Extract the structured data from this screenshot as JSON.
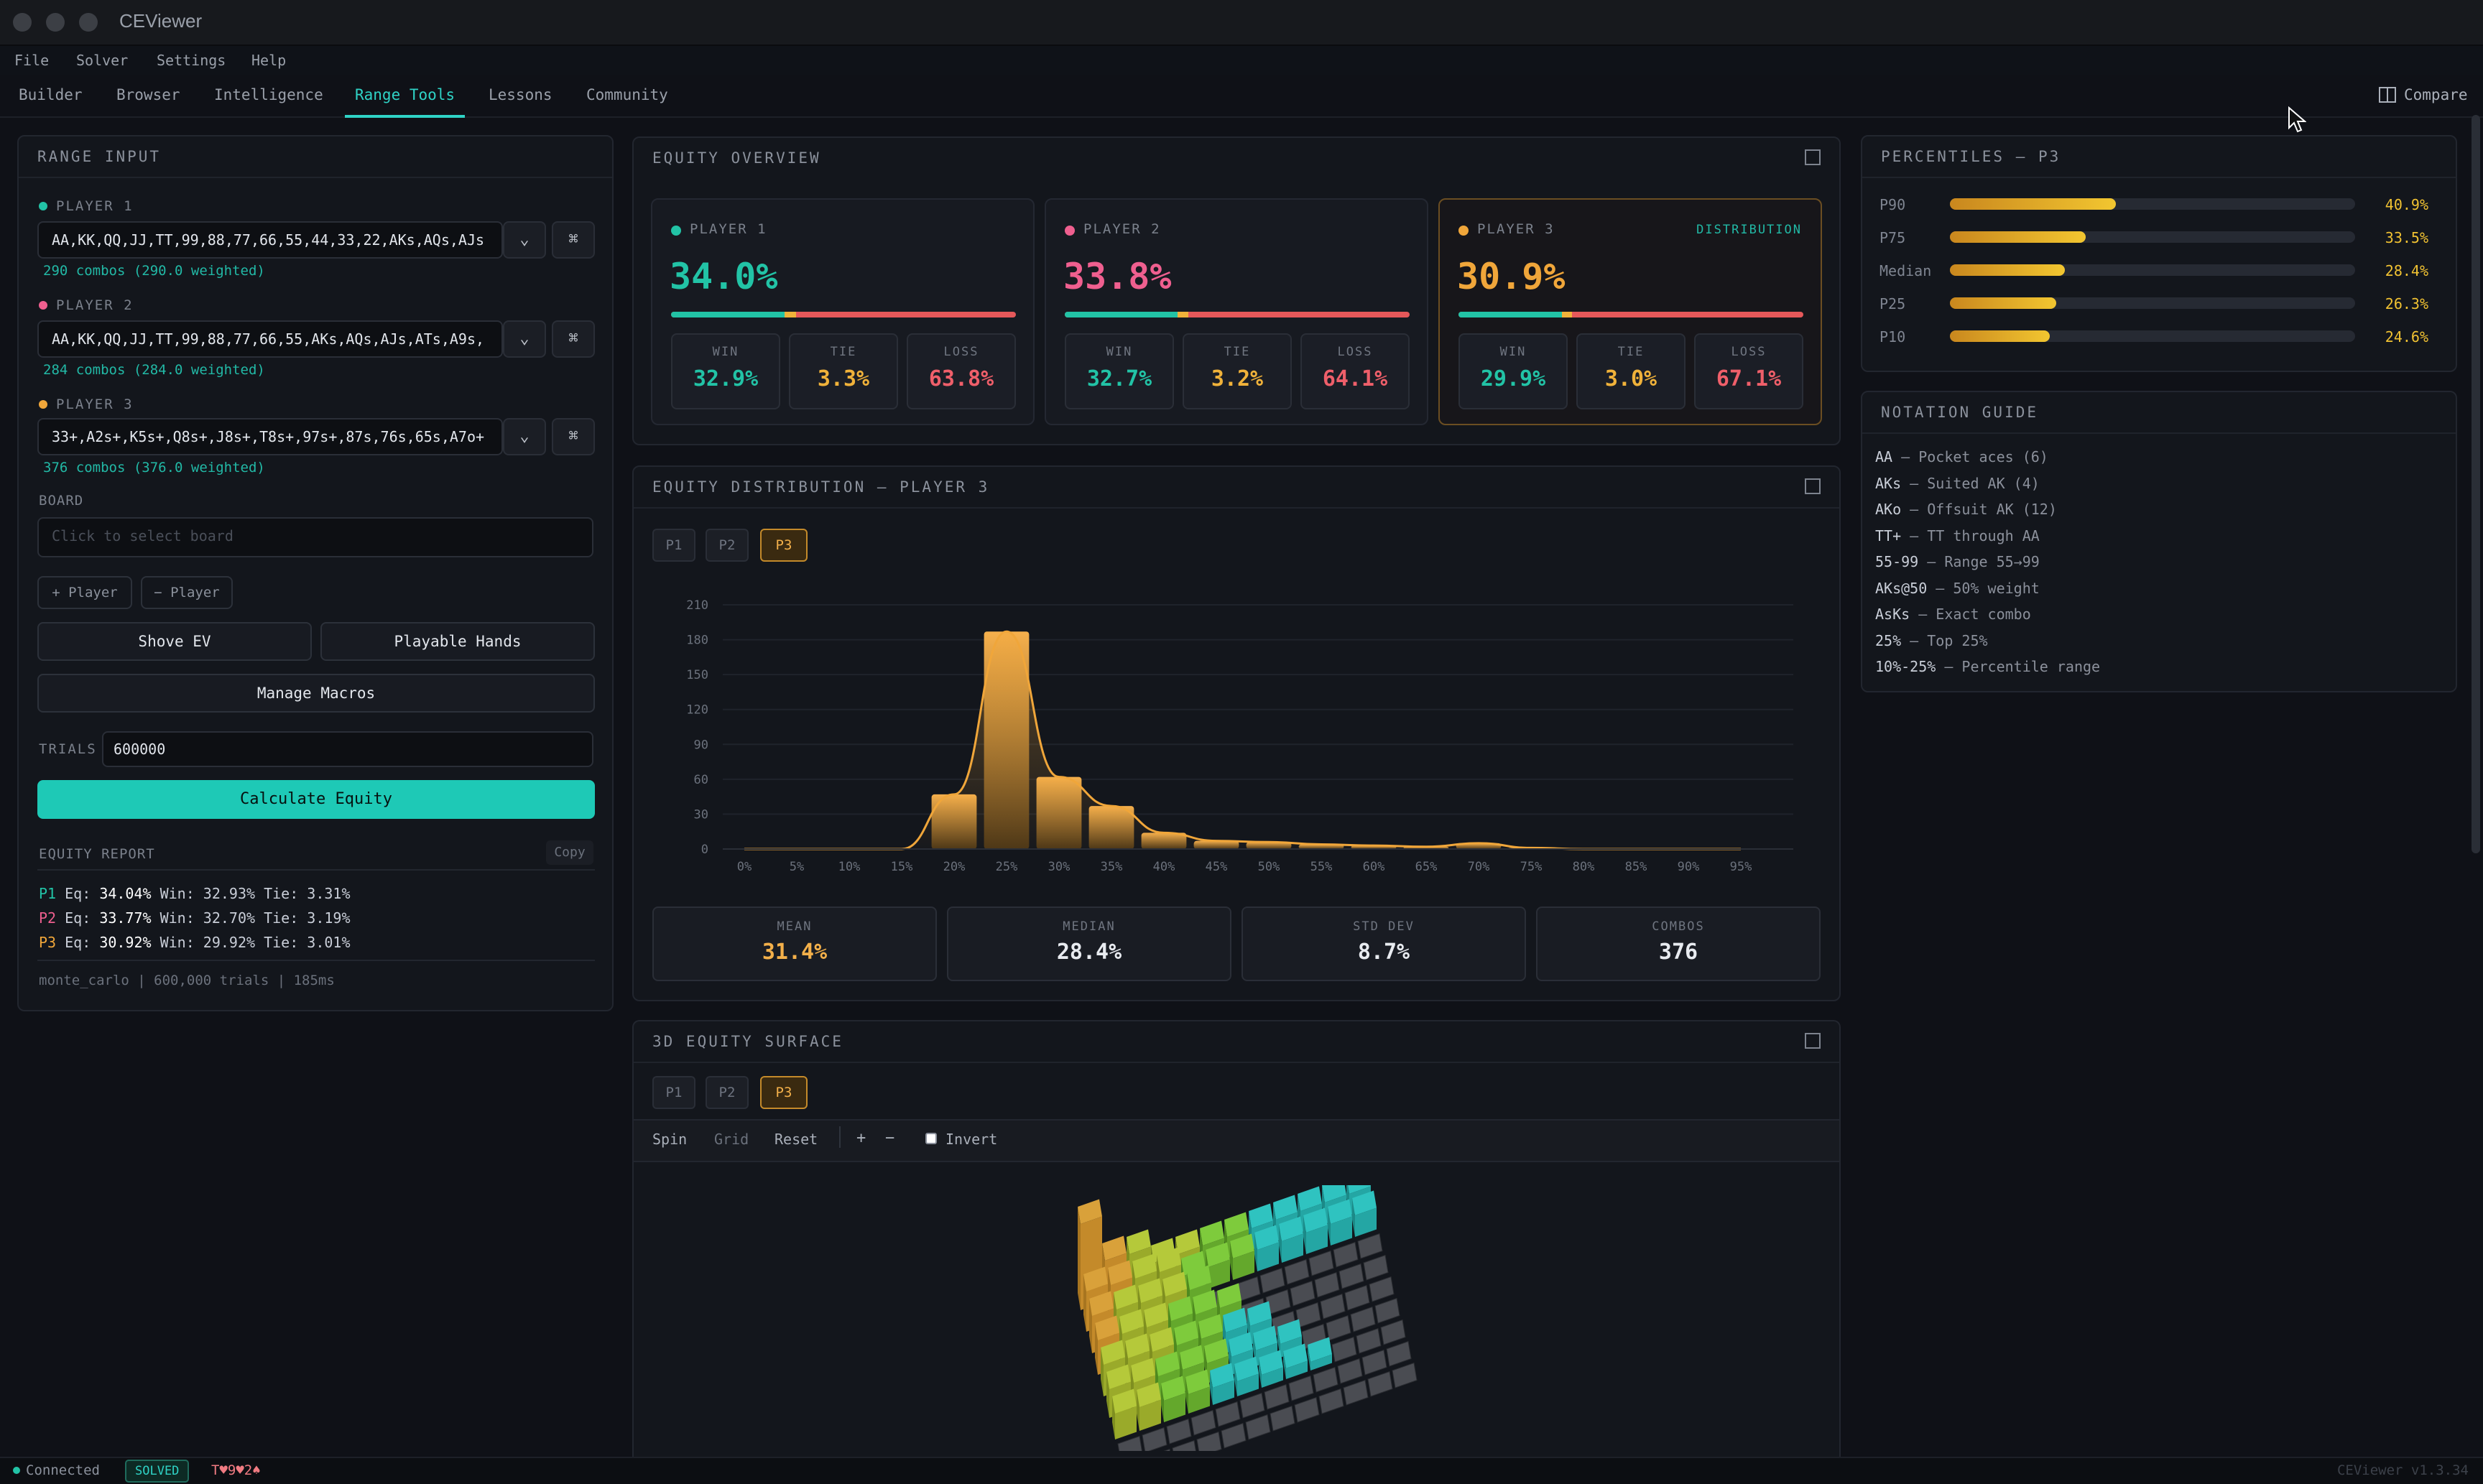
{
  "app": {
    "title": "CEViewer",
    "version": "CEViewer v1.3.34"
  },
  "menu": [
    "File",
    "Solver",
    "Settings",
    "Help"
  ],
  "tabs": [
    "Builder",
    "Browser",
    "Intelligence",
    "Range Tools",
    "Lessons",
    "Community"
  ],
  "active_tab": "Range Tools",
  "compare_label": "Compare",
  "range_input": {
    "title": "RANGE INPUT",
    "players": [
      {
        "label": "PLAYER 1",
        "color": "#22c3a6",
        "range": "AA,KK,QQ,JJ,TT,99,88,77,66,55,44,33,22,AKs,AQs,AJs",
        "combos": "290 combos (290.0 weighted)"
      },
      {
        "label": "PLAYER 2",
        "color": "#ef5f8f",
        "range": "AA,KK,QQ,JJ,TT,99,88,77,66,55,AKs,AQs,AJs,ATs,A9s,",
        "combos": "284 combos (284.0 weighted)"
      },
      {
        "label": "PLAYER 3",
        "color": "#f0a63a",
        "range": "33+,A2s+,K5s+,Q8s+,J8s+,T8s+,97s+,87s,76s,65s,A7o+",
        "combos": "376 combos (376.0 weighted)"
      }
    ],
    "board_label": "BOARD",
    "board_placeholder": "Click to select board",
    "add_player": "+ Player",
    "remove_player": "− Player",
    "shove_ev": "Shove EV",
    "playable_hands": "Playable Hands",
    "manage_macros": "Manage Macros",
    "trials_label": "TRIALS",
    "trials_value": "600000",
    "calculate": "Calculate Equity",
    "report_label": "EQUITY REPORT",
    "copy": "Copy",
    "report": [
      {
        "p": "P1",
        "color": "#22c3a6",
        "eq": "Eq: ",
        "eq_v": "34.04%",
        "rest": " Win: 32.93% Tie: 3.31%"
      },
      {
        "p": "P2",
        "color": "#ef5f8f",
        "eq": "Eq: ",
        "eq_v": "33.77%",
        "rest": " Win: 32.70% Tie: 3.19%"
      },
      {
        "p": "P3",
        "color": "#f0a63a",
        "eq": "Eq: ",
        "eq_v": "30.92%",
        "rest": " Win: 29.92% Tie: 3.01%"
      }
    ],
    "footer": "monte_carlo | 600,000 trials | 185ms"
  },
  "equity_overview": {
    "title": "EQUITY OVERVIEW",
    "distribution_label": "DISTRIBUTION",
    "win_label": "WIN",
    "tie_label": "TIE",
    "loss_label": "LOSS",
    "cards": [
      {
        "label": "PLAYER 1",
        "color": "#22c3a6",
        "equity": "34.0%",
        "equity_value": 34.0,
        "win": "32.9%",
        "tie": "3.3%",
        "loss": "63.8%",
        "win_v": 32.9,
        "tie_v": 3.3
      },
      {
        "label": "PLAYER 2",
        "color": "#ef5f8f",
        "equity": "33.8%",
        "equity_value": 33.8,
        "win": "32.7%",
        "tie": "3.2%",
        "loss": "64.1%",
        "win_v": 32.7,
        "tie_v": 3.2
      },
      {
        "label": "PLAYER 3",
        "color": "#f0a63a",
        "equity": "30.9%",
        "equity_value": 30.9,
        "win": "29.9%",
        "tie": "3.0%",
        "loss": "67.1%",
        "win_v": 29.9,
        "tie_v": 3.0
      }
    ]
  },
  "distribution": {
    "title": "EQUITY DISTRIBUTION — PLAYER 3",
    "pills": [
      "P1",
      "P2",
      "P3"
    ],
    "active_pill": "P3",
    "summary": [
      {
        "label": "MEAN",
        "value": "31.4%",
        "color": "#f3b04a"
      },
      {
        "label": "MEDIAN",
        "value": "28.4%",
        "color": "#e8ebf0"
      },
      {
        "label": "STD DEV",
        "value": "8.7%",
        "color": "#e8ebf0"
      },
      {
        "label": "COMBOS",
        "value": "376",
        "color": "#e8ebf0"
      }
    ]
  },
  "chart_data": {
    "type": "bar",
    "title": "",
    "xlabel": "",
    "ylabel": "",
    "x_ticks": [
      "0%",
      "5%",
      "10%",
      "15%",
      "20%",
      "25%",
      "30%",
      "35%",
      "40%",
      "45%",
      "50%",
      "55%",
      "60%",
      "65%",
      "70%",
      "75%",
      "80%",
      "85%",
      "90%",
      "95%"
    ],
    "y_ticks": [
      0,
      30,
      60,
      90,
      120,
      150,
      180,
      210
    ],
    "ylim": [
      0,
      210
    ],
    "xlim": [
      0,
      100
    ],
    "grid": true,
    "bars": [
      {
        "x": 20,
        "value": 47
      },
      {
        "x": 25,
        "value": 187
      },
      {
        "x": 30,
        "value": 62
      },
      {
        "x": 35,
        "value": 37
      },
      {
        "x": 40,
        "value": 14
      },
      {
        "x": 45,
        "value": 7
      },
      {
        "x": 50,
        "value": 6
      },
      {
        "x": 55,
        "value": 4
      },
      {
        "x": 60,
        "value": 3
      },
      {
        "x": 65,
        "value": 2
      },
      {
        "x": 70,
        "value": 5
      },
      {
        "x": 75,
        "value": 1
      }
    ],
    "color": "#f0a63a"
  },
  "surface": {
    "title": "3D EQUITY SURFACE",
    "pills": [
      "P1",
      "P2",
      "P3"
    ],
    "active_pill": "P3",
    "controls": [
      "Spin",
      "Grid",
      "Reset"
    ],
    "plus": "+",
    "minus": "−",
    "invert": "Invert"
  },
  "percentiles": {
    "title": "PERCENTILES — P3",
    "rows": [
      {
        "label": "P90",
        "value": "40.9%",
        "v": 40.9
      },
      {
        "label": "P75",
        "value": "33.5%",
        "v": 33.5
      },
      {
        "label": "Median",
        "value": "28.4%",
        "v": 28.4
      },
      {
        "label": "P25",
        "value": "26.3%",
        "v": 26.3
      },
      {
        "label": "P10",
        "value": "24.6%",
        "v": 24.6
      }
    ]
  },
  "notation": {
    "title": "NOTATION GUIDE",
    "items": [
      {
        "k": "AA",
        "d": " — Pocket aces (6)"
      },
      {
        "k": "AKs",
        "d": " — Suited AK (4)"
      },
      {
        "k": "AKo",
        "d": " — Offsuit AK (12)"
      },
      {
        "k": "TT+",
        "d": " — TT through AA"
      },
      {
        "k": "55-99",
        "d": " — Range 55→99"
      },
      {
        "k": "AKs@50",
        "d": " — 50% weight"
      },
      {
        "k": "AsKs",
        "d": " — Exact combo"
      },
      {
        "k": "25%",
        "d": " — Top 25%"
      },
      {
        "k": "10%-25%",
        "d": " — Percentile range"
      }
    ]
  },
  "statusbar": {
    "connected": "Connected",
    "badge": "SOLVED",
    "board": "T♥9♥2♠"
  }
}
